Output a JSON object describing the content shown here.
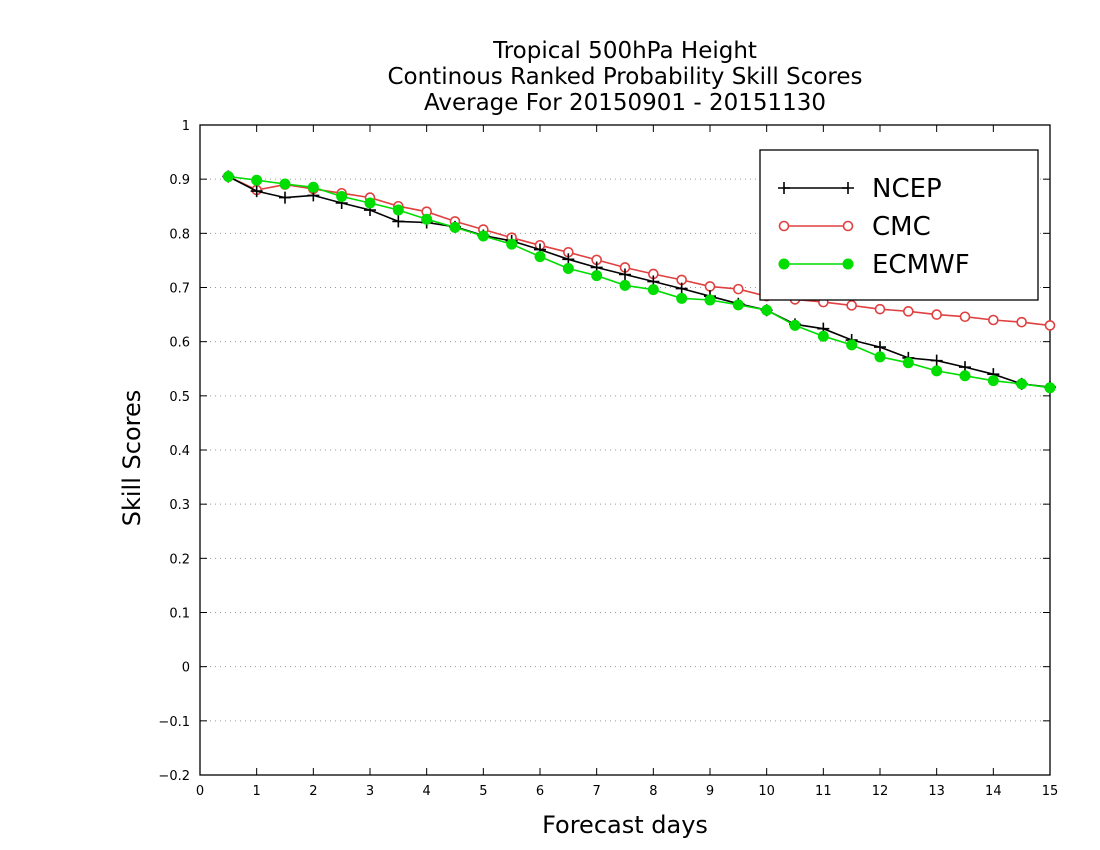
{
  "chart_data": {
    "type": "line",
    "title_lines": [
      "Tropical 500hPa Height",
      "Continous Ranked Probability Skill Scores",
      "Average For 20150901 - 20151130"
    ],
    "xlabel": "Forecast days",
    "ylabel": "Skill Scores",
    "xlim": [
      0,
      15
    ],
    "ylim": [
      -0.2,
      1
    ],
    "x_ticks": [
      "0",
      "1",
      "2",
      "3",
      "4",
      "5",
      "6",
      "7",
      "8",
      "9",
      "10",
      "11",
      "12",
      "13",
      "14",
      "15"
    ],
    "y_ticks": [
      "−0.2",
      "−0.1",
      "0",
      "0.1",
      "0.2",
      "0.3",
      "0.4",
      "0.5",
      "0.6",
      "0.7",
      "0.8",
      "0.9",
      "1"
    ],
    "grid": "dotted horizontal",
    "legend_position": "top-right",
    "x": [
      0.5,
      1,
      1.5,
      2,
      2.5,
      3,
      3.5,
      4,
      4.5,
      5,
      5.5,
      6,
      6.5,
      7,
      7.5,
      8,
      8.5,
      9,
      9.5,
      10,
      10.5,
      11,
      11.5,
      12,
      12.5,
      13,
      13.5,
      14,
      14.5,
      15
    ],
    "series": [
      {
        "name": "NCEP",
        "color": "#000000",
        "marker": "plus",
        "values": [
          0.905,
          0.878,
          0.866,
          0.87,
          0.856,
          0.843,
          0.822,
          0.82,
          0.812,
          0.796,
          0.786,
          0.77,
          0.752,
          0.737,
          0.724,
          0.711,
          0.698,
          0.684,
          0.67,
          0.658,
          0.632,
          0.624,
          0.603,
          0.59,
          0.57,
          0.565,
          0.553,
          0.54,
          0.522,
          0.516
        ]
      },
      {
        "name": "CMC",
        "color": "#e04040",
        "marker": "open-circle",
        "values": [
          0.905,
          0.88,
          0.89,
          0.882,
          0.874,
          0.866,
          0.85,
          0.84,
          0.822,
          0.807,
          0.792,
          0.778,
          0.765,
          0.751,
          0.737,
          0.725,
          0.714,
          0.702,
          0.697,
          0.684,
          0.678,
          0.673,
          0.667,
          0.66,
          0.656,
          0.65,
          0.646,
          0.64,
          0.636,
          0.63
        ]
      },
      {
        "name": "ECMWF",
        "color": "#00dd00",
        "marker": "filled-circle",
        "values": [
          0.905,
          0.898,
          0.891,
          0.885,
          0.868,
          0.856,
          0.843,
          0.826,
          0.811,
          0.795,
          0.78,
          0.757,
          0.735,
          0.722,
          0.704,
          0.696,
          0.68,
          0.677,
          0.668,
          0.658,
          0.63,
          0.61,
          0.594,
          0.572,
          0.561,
          0.546,
          0.537,
          0.528,
          0.522,
          0.515
        ]
      }
    ]
  }
}
